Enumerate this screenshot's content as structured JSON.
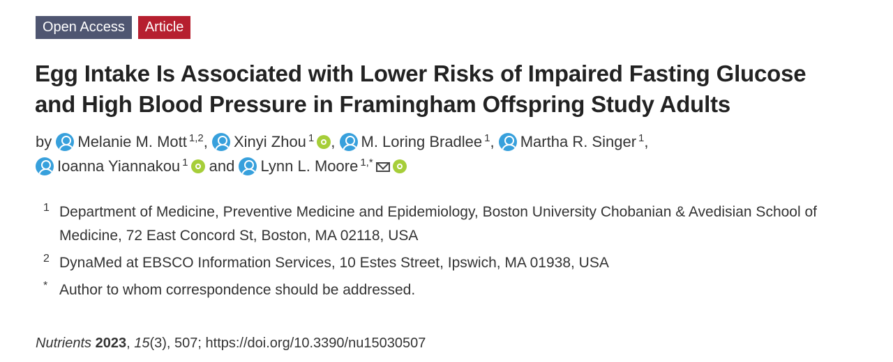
{
  "badges": {
    "open_access": "Open Access",
    "article": "Article"
  },
  "title_line1": "Egg Intake Is Associated with Lower Risks of Impaired Fasting Glucose",
  "title_line2": "and High Blood Pressure in Framingham Offspring Study Adults",
  "by_label": "by",
  "and_label": "and",
  "authors": [
    {
      "name": "Melanie M. Mott",
      "sup": "1,2",
      "orcid": false
    },
    {
      "name": "Xinyi Zhou",
      "sup": "1",
      "orcid": true
    },
    {
      "name": "M. Loring Bradlee",
      "sup": "1",
      "orcid": false
    },
    {
      "name": "Martha R. Singer",
      "sup": "1",
      "orcid": false
    },
    {
      "name": "Ioanna Yiannakou",
      "sup": "1",
      "orcid": true
    },
    {
      "name": "Lynn L. Moore",
      "sup": "1,*",
      "orcid": true
    }
  ],
  "affiliations": [
    {
      "num": "1",
      "text": "Department of Medicine, Preventive Medicine and Epidemiology, Boston University Chobanian & Avedisian School of Medicine, 72 East Concord St, Boston, MA 02118, USA"
    },
    {
      "num": "2",
      "text": "DynaMed at EBSCO Information Services, 10 Estes Street, Ipswich, MA 01938, USA"
    },
    {
      "num": "*",
      "text": "Author to whom correspondence should be addressed."
    }
  ],
  "citation": {
    "journal": "Nutrients",
    "year": "2023",
    "volume": "15",
    "issue": "(3), 507; ",
    "doi": "https://doi.org/10.3390/nu15030507"
  },
  "colors": {
    "open_access_bg": "#4f5671",
    "article_bg": "#b61f2f",
    "avatar": "#37a0dc",
    "orcid": "#a6ce39"
  },
  "icons": {
    "author": "user-avatar-icon",
    "orcid": "orcid-icon",
    "mail": "mail-icon"
  }
}
